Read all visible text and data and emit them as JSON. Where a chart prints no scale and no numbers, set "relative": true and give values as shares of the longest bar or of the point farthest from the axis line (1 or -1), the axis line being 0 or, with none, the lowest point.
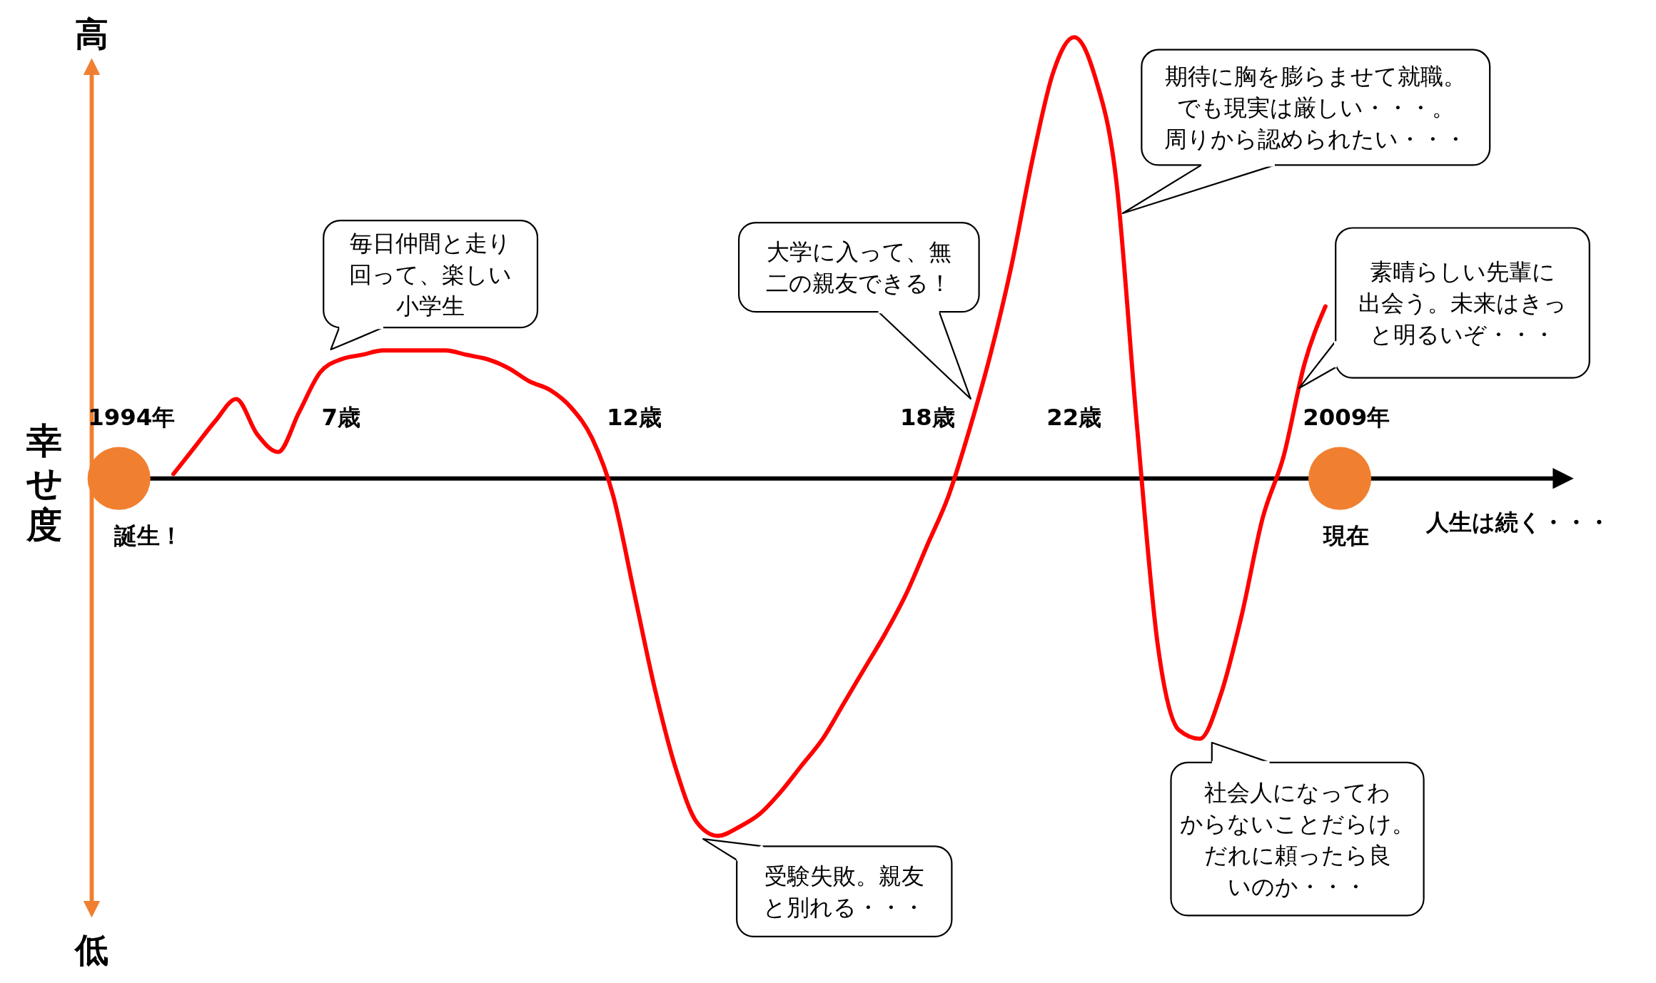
{
  "chart_data": {
    "type": "line",
    "relative": true,
    "ylabel": "幸せ度",
    "color": "#ff0000",
    "categories": [
      null,
      null,
      "1994年",
      null,
      null,
      null,
      null,
      null,
      null,
      null,
      null,
      null,
      "7歳",
      null,
      null,
      null,
      null,
      null,
      null,
      null,
      null,
      null,
      null,
      null,
      null,
      null,
      "12歳",
      null,
      null,
      null,
      null,
      null,
      null,
      null,
      null,
      null,
      null,
      null,
      null,
      null,
      "18歳",
      null,
      null,
      null,
      null,
      null,
      null,
      "22歳",
      null,
      null,
      null,
      null,
      null,
      null,
      null,
      null,
      null,
      null,
      null,
      null,
      "2009年",
      null,
      null,
      null,
      null,
      null,
      null,
      null,
      null,
      null,
      null
    ],
    "values": [
      null,
      null,
      null,
      null,
      0.01,
      0.07,
      0.13,
      0.18,
      0.1,
      0.06,
      0.15,
      0.24,
      0.27,
      0.28,
      0.29,
      0.29,
      0.29,
      0.29,
      0.28,
      0.27,
      0.25,
      0.22,
      0.2,
      0.16,
      0.09,
      -0.04,
      -0.26,
      -0.48,
      -0.66,
      -0.78,
      -0.81,
      -0.79,
      -0.76,
      -0.71,
      -0.65,
      -0.59,
      -0.51,
      -0.43,
      -0.35,
      -0.26,
      -0.15,
      -0.04,
      0.11,
      0.28,
      0.48,
      0.72,
      0.92,
      1.0,
      0.91,
      0.68,
      0.12,
      -0.38,
      -0.57,
      -0.59,
      -0.49,
      -0.31,
      -0.09,
      0.05,
      0.26,
      0.39,
      null,
      null,
      null,
      null,
      null,
      null,
      null,
      null,
      null,
      null,
      null
    ],
    "annotations": [
      "高",
      "低",
      "人生は続く・・・",
      "誕生！",
      "現在",
      "毎日仲間と走り回って、楽しい小学生",
      "受験失敗。親友と別れる・・・",
      "大学に入って、無二の親友できる！",
      "期待に胸を膨らませて就職。でも現実は厳しい・・・。周りから認められたい・・・",
      "社会人になってわからないことだらけ。だれに頼ったら良いのか・・・",
      "素晴らしい先輩に出会う。未来はきっと明るいぞ・・・"
    ]
  }
}
